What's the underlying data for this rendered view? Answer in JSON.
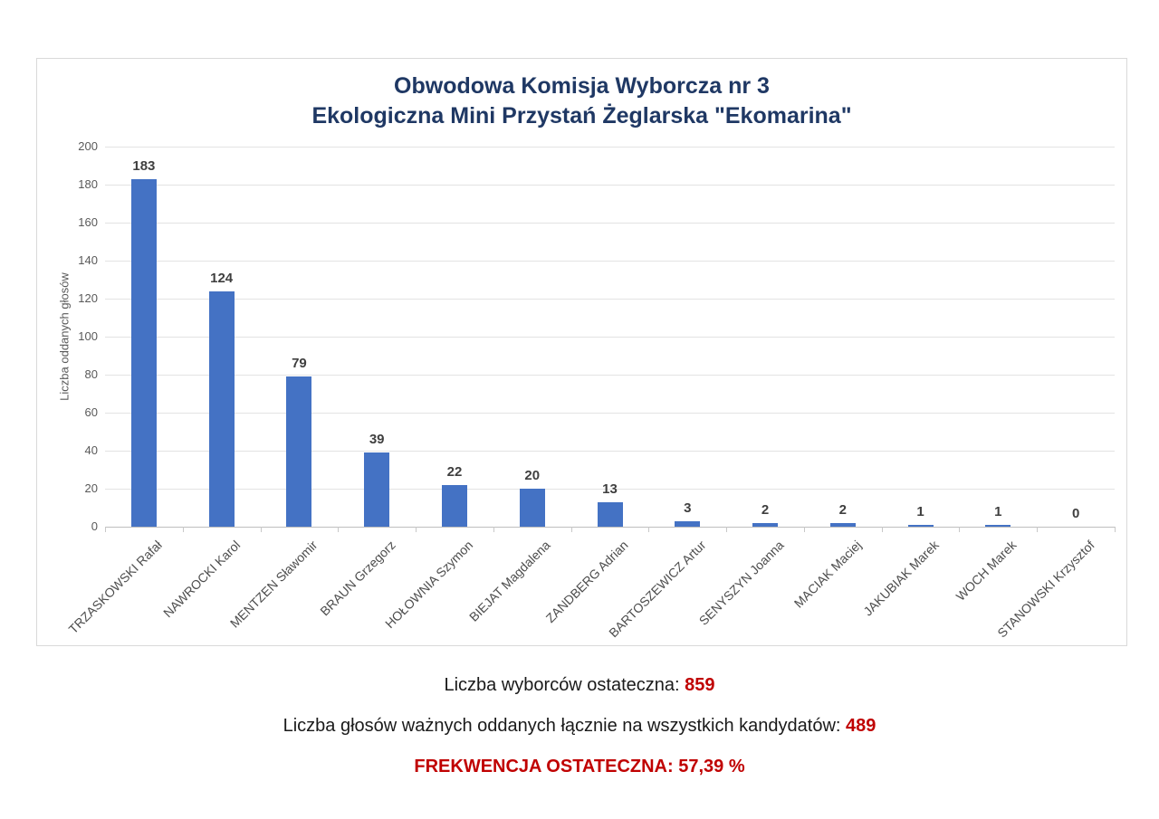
{
  "chart": {
    "title_lines": [
      "Obwodowa Komisja Wyborcza nr 3",
      "Ekologiczna Mini Przystań Żeglarska \"Ekomarina\""
    ],
    "y_axis_title": "Liczba oddanych głosów"
  },
  "chart_data": {
    "type": "bar",
    "title": "Obwodowa Komisja Wyborcza nr 3 — Ekologiczna Mini Przystań Żeglarska \"Ekomarina\"",
    "categories": [
      "TRZASKOWSKI Rafał",
      "NAWROCKI Karol",
      "MENTZEN Sławomir",
      "BRAUN Grzegorz",
      "HOŁOWNIA Szymon",
      "BIEJAT Magdalena",
      "ZANDBERG Adrian",
      "BARTOSZEWICZ Artur",
      "SENYSZYN Joanna",
      "MACIAK Maciej",
      "JAKUBIAK Marek",
      "WOCH Marek",
      "STANOWSKI Krzysztof"
    ],
    "values": [
      183,
      124,
      79,
      39,
      22,
      20,
      13,
      3,
      2,
      2,
      1,
      1,
      0
    ],
    "xlabel": "",
    "ylabel": "Liczba oddanych głosów",
    "ylim": [
      0,
      200
    ],
    "ytick_step": 20,
    "grid": true,
    "legend": false,
    "bar_color": "#4472c4"
  },
  "footer": {
    "line1_label": "Liczba wyborców ostateczna: ",
    "line1_value": "859",
    "line2_label": "Liczba głosów ważnych oddanych łącznie na wszystkich kandydatów: ",
    "line2_value": "489",
    "line3_label": "FREKWENCJA OSTATECZNA: ",
    "line3_value": "57,39 %"
  },
  "colors": {
    "title": "#1f3864",
    "bar": "#4472c4",
    "highlight_red": "#c00000",
    "gridline": "#e3e3e3",
    "axis_text": "#595959"
  }
}
